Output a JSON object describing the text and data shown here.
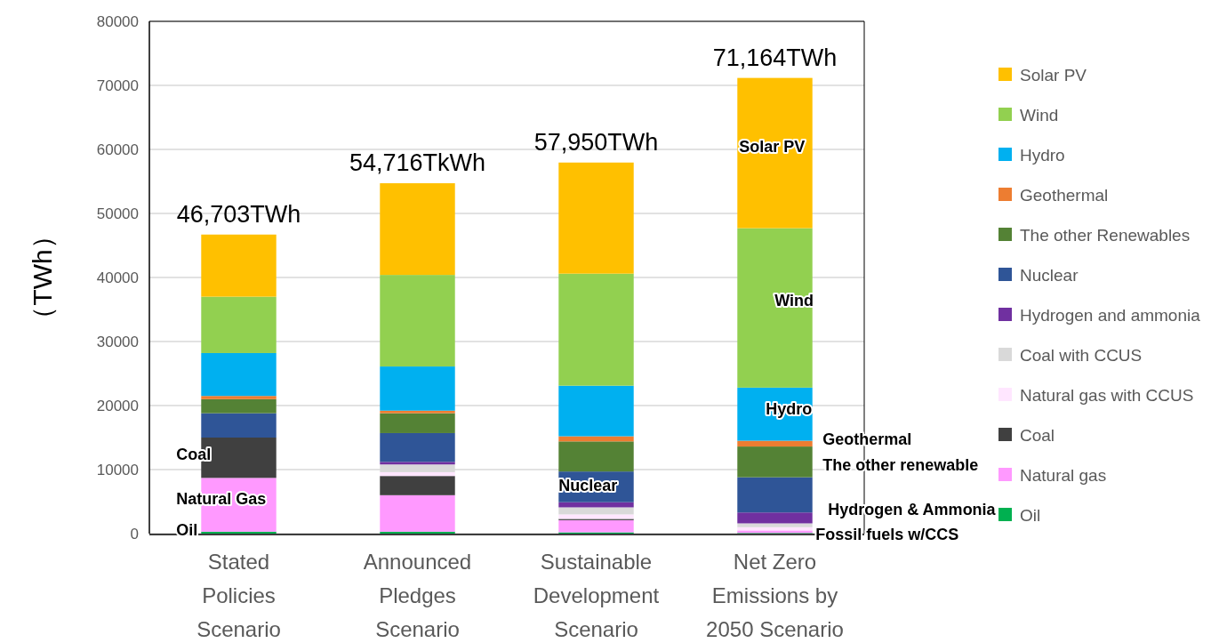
{
  "chart_data": {
    "type": "bar",
    "stacked": true,
    "ylabel": "（TWh）",
    "categories": [
      "Stated Policies Scenario",
      "Announced Pledges Scenario",
      "Sustainable Development Scenario",
      "Net Zero Emissions by 2050 Scenario"
    ],
    "ylim": [
      0,
      80000
    ],
    "yticks": [
      0,
      10000,
      20000,
      30000,
      40000,
      50000,
      60000,
      70000,
      80000
    ],
    "grid": "y",
    "legend": "right",
    "totals": [
      "46,703TWh",
      "54,716TkWh",
      "57,950TWh",
      "71,164TWh"
    ],
    "series": [
      {
        "name": "Oil",
        "color": "#00b050",
        "values": [
          300,
          300,
          200,
          100
        ]
      },
      {
        "name": "Natural gas",
        "color": "#ff99ff",
        "values": [
          8400,
          5700,
          1900,
          400
        ]
      },
      {
        "name": "Coal",
        "color": "#404040",
        "values": [
          6300,
          3000,
          200,
          0
        ]
      },
      {
        "name": "Natural gas with CCUS",
        "color": "#ffe6ff",
        "values": [
          0,
          600,
          700,
          500
        ]
      },
      {
        "name": "Coal with CCUS",
        "color": "#d9d9d9",
        "values": [
          0,
          1200,
          1100,
          600
        ]
      },
      {
        "name": "Hydrogen and ammonia",
        "color": "#7030a0",
        "values": [
          0,
          400,
          800,
          1700
        ]
      },
      {
        "name": "Nuclear",
        "color": "#2f5597",
        "values": [
          3800,
          4500,
          4800,
          5500
        ]
      },
      {
        "name": "The other Renewables",
        "color": "#548235",
        "values": [
          2200,
          3100,
          4700,
          4800
        ]
      },
      {
        "name": "Geothermal",
        "color": "#ed7d31",
        "values": [
          500,
          400,
          800,
          900
        ]
      },
      {
        "name": "Hydro",
        "color": "#00b0f0",
        "values": [
          6700,
          6900,
          7900,
          8300
        ]
      },
      {
        "name": "Wind",
        "color": "#92d050",
        "values": [
          8800,
          14300,
          17500,
          24900
        ]
      },
      {
        "name": "Solar PV",
        "color": "#ffc000",
        "values": [
          9703,
          14316,
          17350,
          23464
        ]
      }
    ],
    "annotations": [
      "Coal",
      "Natural Gas",
      "Oil",
      "Nuclear",
      "Solar PV",
      "Wind",
      "Hydro",
      "Geothermal",
      "The other renewable",
      "Hydrogen & Ammonia",
      "Fossil fuels w/CCS"
    ]
  }
}
